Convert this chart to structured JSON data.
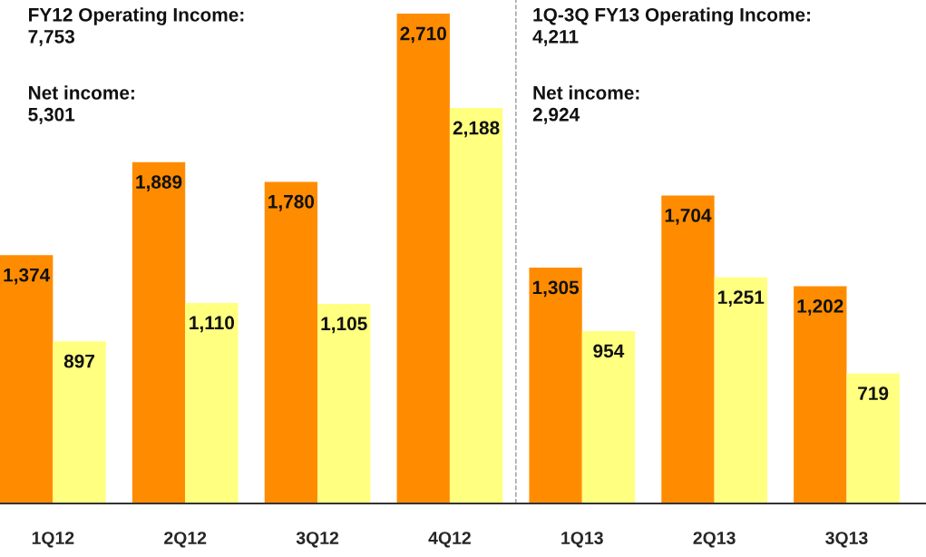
{
  "chart_data": {
    "type": "bar",
    "categories": [
      "1Q12",
      "2Q12",
      "3Q12",
      "4Q12",
      "1Q13",
      "2Q13",
      "3Q13"
    ],
    "series": [
      {
        "color": "#ff8c00",
        "values": [
          1374,
          1889,
          1780,
          2710,
          1305,
          1704,
          1202
        ],
        "value_labels": [
          "1,374",
          "1,889",
          "1,780",
          "2,710",
          "1,305",
          "1,704",
          "1,202"
        ]
      },
      {
        "color": "#ffff80",
        "values": [
          897,
          1110,
          1105,
          2188,
          954,
          1251,
          719
        ],
        "value_labels": [
          "897",
          "1,110",
          "1,105",
          "2,188",
          "954",
          "1,251",
          "719"
        ]
      }
    ],
    "annotations": [
      "FY12 Operating Income:\n7,753",
      "Net income:\n5,301",
      "1Q-3Q FY13 Operating Income:\n4,211",
      "Net income:\n2,924"
    ],
    "grid": false,
    "legend": false
  }
}
